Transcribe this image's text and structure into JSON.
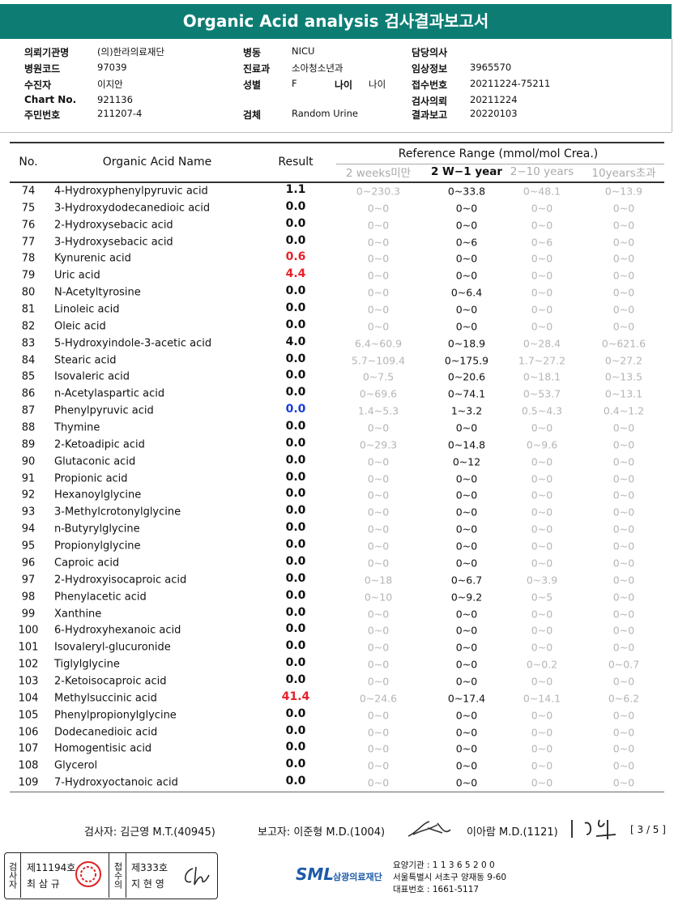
{
  "header": {
    "title": "Organic Acid analysis 검사결과보고서"
  },
  "info": {
    "columns": [
      [
        {
          "label": "의뢰기관명",
          "value": "(의)한라의료재단"
        },
        {
          "label": "병원코드",
          "value": "97039"
        },
        {
          "label": "수진자",
          "value": "이지안"
        },
        {
          "label": "Chart No.",
          "value": "921136"
        },
        {
          "label": "주민번호",
          "value": "211207-4"
        }
      ],
      [
        {
          "label": "병동",
          "value": "NICU"
        },
        {
          "label": "진료과",
          "value": "소아청소년과"
        },
        {
          "label": "성별",
          "value": "F",
          "label2": "나이",
          "value2": "나이"
        },
        {
          "label": "검체",
          "value": "Random Urine"
        }
      ],
      [
        {
          "label": "담당의사"
        },
        {
          "label": "임상정보",
          "value": "3965570"
        },
        {
          "label": "접수번호",
          "value": "20211224-75211"
        },
        {
          "label": "검사의뢰",
          "value": "20211224"
        },
        {
          "label": "결과보고",
          "value": "20220103"
        }
      ]
    ]
  },
  "table": {
    "headers": {
      "no": "No.",
      "name": "Organic Acid Name",
      "result": "Result",
      "reference": "Reference Range (mmol/mol Crea.)",
      "ranges": [
        "2 weeks미만",
        "2 W−1 year",
        "2−10 years",
        "10years초과"
      ]
    },
    "rows": [
      {
        "no": "74",
        "name": "4-Hydroxyphenylpyruvic acid",
        "result": "1.1",
        "ranges": [
          "0~230.3",
          "0~33.8",
          "0~48.1",
          "0~13.9"
        ]
      },
      {
        "no": "75",
        "name": "3-Hydroxydodecanedioic acid",
        "result": "0.0",
        "ranges": [
          "0~0",
          "0~0",
          "0~0",
          "0~0"
        ]
      },
      {
        "no": "76",
        "name": "2-Hydroxysebacic acid",
        "result": "0.0",
        "ranges": [
          "0~0",
          "0~0",
          "0~0",
          "0~0"
        ]
      },
      {
        "no": "77",
        "name": "3-Hydroxysebacic acid",
        "result": "0.0",
        "ranges": [
          "0~0",
          "0~6",
          "0~6",
          "0~0"
        ]
      },
      {
        "no": "78",
        "name": "Kynurenic acid",
        "result": "0.6",
        "color": "#e8202a",
        "ranges": [
          "0~0",
          "0~0",
          "0~0",
          "0~0"
        ]
      },
      {
        "no": "79",
        "name": "Uric acid",
        "result": "4.4",
        "color": "#e8202a",
        "ranges": [
          "0~0",
          "0~0",
          "0~0",
          "0~0"
        ]
      },
      {
        "no": "80",
        "name": "N-Acetyltyrosine",
        "result": "0.0",
        "ranges": [
          "0~0",
          "0~6.4",
          "0~0",
          "0~0"
        ]
      },
      {
        "no": "81",
        "name": "Linoleic acid",
        "result": "0.0",
        "ranges": [
          "0~0",
          "0~0",
          "0~0",
          "0~0"
        ]
      },
      {
        "no": "82",
        "name": "Oleic acid",
        "result": "0.0",
        "ranges": [
          "0~0",
          "0~0",
          "0~0",
          "0~0"
        ]
      },
      {
        "no": "83",
        "name": "5-Hydroxyindole-3-acetic acid",
        "result": "4.0",
        "ranges": [
          "6.4~60.9",
          "0~18.9",
          "0~28.4",
          "0~621.6"
        ]
      },
      {
        "no": "84",
        "name": "Stearic acid",
        "result": "0.0",
        "ranges": [
          "5.7~109.4",
          "0~175.9",
          "1.7~27.2",
          "0~27.2"
        ]
      },
      {
        "no": "85",
        "name": "Isovaleric acid",
        "result": "0.0",
        "ranges": [
          "0~7.5",
          "0~20.6",
          "0~18.1",
          "0~13.5"
        ]
      },
      {
        "no": "86",
        "name": "n-Acetylaspartic acid",
        "result": "0.0",
        "ranges": [
          "0~69.6",
          "0~74.1",
          "0~53.7",
          "0~13.1"
        ]
      },
      {
        "no": "87",
        "name": "Phenylpyruvic acid",
        "result": "0.0",
        "color": "#1a3ed8",
        "ranges": [
          "1.4~5.3",
          "1~3.2",
          "0.5~4.3",
          "0.4~1.2"
        ]
      },
      {
        "no": "88",
        "name": "Thymine",
        "result": "0.0",
        "ranges": [
          "0~0",
          "0~0",
          "0~0",
          "0~0"
        ]
      },
      {
        "no": "89",
        "name": "2-Ketoadipic acid",
        "result": "0.0",
        "ranges": [
          "0~29.3",
          "0~14.8",
          "0~9.6",
          "0~0"
        ]
      },
      {
        "no": "90",
        "name": "Glutaconic acid",
        "result": "0.0",
        "ranges": [
          "0~0",
          "0~12",
          "0~0",
          "0~0"
        ]
      },
      {
        "no": "91",
        "name": "Propionic acid",
        "result": "0.0",
        "ranges": [
          "0~0",
          "0~0",
          "0~0",
          "0~0"
        ]
      },
      {
        "no": "92",
        "name": "Hexanoylglycine",
        "result": "0.0",
        "ranges": [
          "0~0",
          "0~0",
          "0~0",
          "0~0"
        ]
      },
      {
        "no": "93",
        "name": "3-Methylcrotonylglycine",
        "result": "0.0",
        "ranges": [
          "0~0",
          "0~0",
          "0~0",
          "0~0"
        ]
      },
      {
        "no": "94",
        "name": "n-Butyrylglycine",
        "result": "0.0",
        "ranges": [
          "0~0",
          "0~0",
          "0~0",
          "0~0"
        ]
      },
      {
        "no": "95",
        "name": "Propionylglycine",
        "result": "0.0",
        "ranges": [
          "0~0",
          "0~0",
          "0~0",
          "0~0"
        ]
      },
      {
        "no": "96",
        "name": "Caproic acid",
        "result": "0.0",
        "ranges": [
          "0~0",
          "0~0",
          "0~0",
          "0~0"
        ]
      },
      {
        "no": "97",
        "name": "2-Hydroxyisocaproic acid",
        "result": "0.0",
        "ranges": [
          "0~18",
          "0~6.7",
          "0~3.9",
          "0~0"
        ]
      },
      {
        "no": "98",
        "name": "Phenylacetic acid",
        "result": "0.0",
        "ranges": [
          "0~10",
          "0~9.2",
          "0~5",
          "0~0"
        ]
      },
      {
        "no": "99",
        "name": "Xanthine",
        "result": "0.0",
        "ranges": [
          "0~0",
          "0~0",
          "0~0",
          "0~0"
        ]
      },
      {
        "no": "100",
        "name": "6-Hydroxyhexanoic acid",
        "result": "0.0",
        "ranges": [
          "0~0",
          "0~0",
          "0~0",
          "0~0"
        ]
      },
      {
        "no": "101",
        "name": "Isovaleryl-glucuronide",
        "result": "0.0",
        "ranges": [
          "0~0",
          "0~0",
          "0~0",
          "0~0"
        ]
      },
      {
        "no": "102",
        "name": "Tiglylglycine",
        "result": "0.0",
        "ranges": [
          "0~0",
          "0~0",
          "0~0.2",
          "0~0.7"
        ]
      },
      {
        "no": "103",
        "name": "2-Ketoisocaproic acid",
        "result": "0.0",
        "ranges": [
          "0~0",
          "0~0",
          "0~0",
          "0~0"
        ]
      },
      {
        "no": "104",
        "name": "Methylsuccinic acid",
        "result": "41.4",
        "color": "#e8202a",
        "ranges": [
          "0~24.6",
          "0~17.4",
          "0~14.1",
          "0~6.2"
        ]
      },
      {
        "no": "105",
        "name": "Phenylpropionylglycine",
        "result": "0.0",
        "ranges": [
          "0~0",
          "0~0",
          "0~0",
          "0~0"
        ]
      },
      {
        "no": "106",
        "name": "Dodecanedioic acid",
        "result": "0.0",
        "ranges": [
          "0~0",
          "0~0",
          "0~0",
          "0~0"
        ]
      },
      {
        "no": "107",
        "name": "Homogentisic acid",
        "result": "0.0",
        "ranges": [
          "0~0",
          "0~0",
          "0~0",
          "0~0"
        ]
      },
      {
        "no": "108",
        "name": "Glycerol",
        "result": "0.0",
        "ranges": [
          "0~0",
          "0~0",
          "0~0",
          "0~0"
        ]
      },
      {
        "no": "109",
        "name": "7-Hydroxyoctanoic acid",
        "result": "0.0",
        "ranges": [
          "0~0",
          "0~0",
          "0~0",
          "0~0"
        ]
      }
    ]
  },
  "signatures": {
    "examiner": "검사자: 김근영 M.T.(40945)",
    "reporter": "보고자: 이준형 M.D.(1004)",
    "doctor": "이아람 M.D.(1121)",
    "page": "[ 3 / 5 ]"
  },
  "footer": {
    "box": {
      "role1": "검사자",
      "license1": "제11194호",
      "name1": "최 삼 규",
      "role2": "접수의",
      "license2": "제333호",
      "name2": "지 현 영"
    },
    "logo": "SML",
    "org": "삼광의료재단",
    "code": "요양기관 : 1 1 3 6 5 2 0 0",
    "address": "서울특별시 서초구 양재동 9-60",
    "phone": "대표번호 : 1661-5117"
  }
}
